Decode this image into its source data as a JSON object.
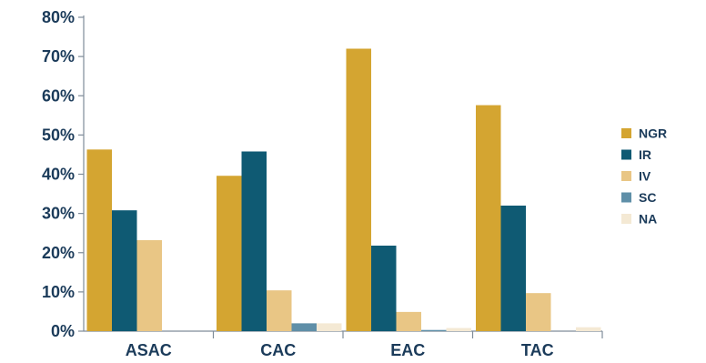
{
  "chart_data": {
    "type": "bar",
    "categories": [
      "ASAC",
      "CAC",
      "EAC",
      "TAC"
    ],
    "series": [
      {
        "name": "NGR",
        "color": "#d4a531",
        "values": [
          46.3,
          39.6,
          72.0,
          57.6
        ]
      },
      {
        "name": "IR",
        "color": "#0f5a73",
        "values": [
          30.8,
          45.8,
          21.8,
          32.0
        ]
      },
      {
        "name": "IV",
        "color": "#e9c685",
        "values": [
          23.2,
          10.4,
          4.9,
          9.7
        ]
      },
      {
        "name": "SC",
        "color": "#5f8fa8",
        "values": [
          0.0,
          2.0,
          0.3,
          0.0
        ]
      },
      {
        "name": "NA",
        "color": "#f4e9d4",
        "values": [
          0.0,
          2.0,
          0.8,
          1.0
        ]
      }
    ],
    "yticks": [
      "0%",
      "10%",
      "20%",
      "30%",
      "40%",
      "50%",
      "60%",
      "70%",
      "80%"
    ],
    "ylim": [
      0,
      80
    ],
    "title": "",
    "xlabel": "",
    "ylabel": "",
    "legend_position": "right",
    "grid": false,
    "axis_color": "#7f8c99",
    "text_color": "#1b3b5a"
  }
}
